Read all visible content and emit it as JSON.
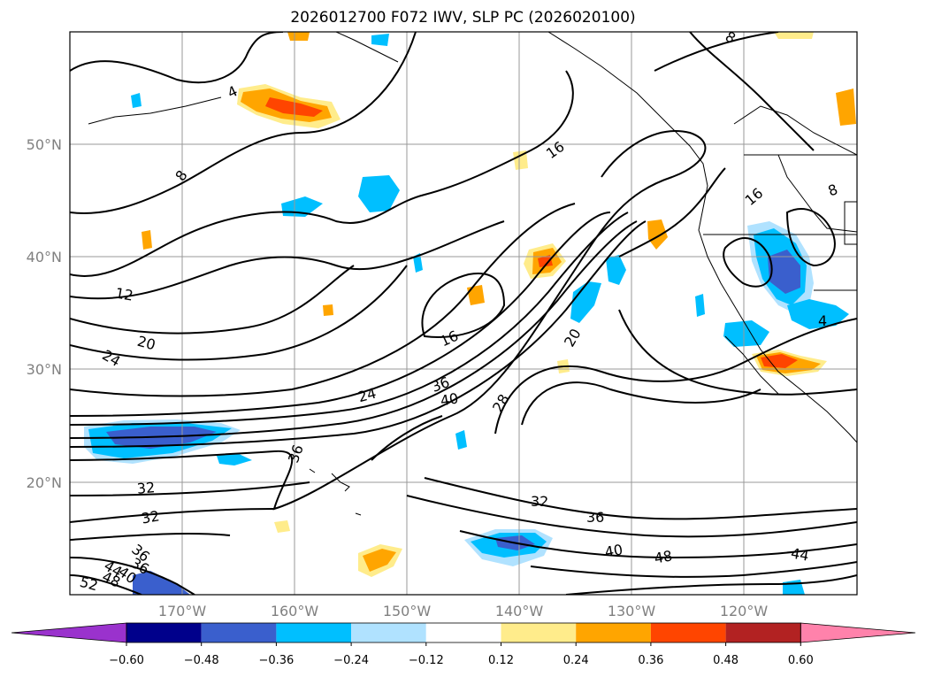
{
  "title": "2026012700 F072 IWV, SLP PC (2026020100)",
  "map": {
    "lat_labels": [
      "50°N",
      "40°N",
      "30°N",
      "20°N"
    ],
    "lon_labels": [
      "170°W",
      "160°W",
      "150°W",
      "140°W",
      "130°W",
      "120°W"
    ],
    "contour_labels": [
      "4",
      "8",
      "16",
      "12",
      "20",
      "24",
      "16",
      "24",
      "36",
      "40",
      "28",
      "20",
      "36",
      "32",
      "32",
      "36",
      "32",
      "36",
      "40",
      "48",
      "44",
      "52",
      "48",
      "44",
      "40",
      "36",
      "4",
      "16",
      "8",
      "8"
    ]
  },
  "colorbar": {
    "ticks": [
      "−0.60",
      "−0.48",
      "−0.36",
      "−0.24",
      "−0.12",
      "0.12",
      "0.24",
      "0.36",
      "0.48",
      "0.60"
    ],
    "colors": [
      "#9a32cd",
      "#00008b",
      "#3a5fcd",
      "#00bfff",
      "#b0e2ff",
      "#ffffff",
      "#ffec8b",
      "#ffa500",
      "#ff4500",
      "#b22222",
      "#ff82ab"
    ]
  }
}
